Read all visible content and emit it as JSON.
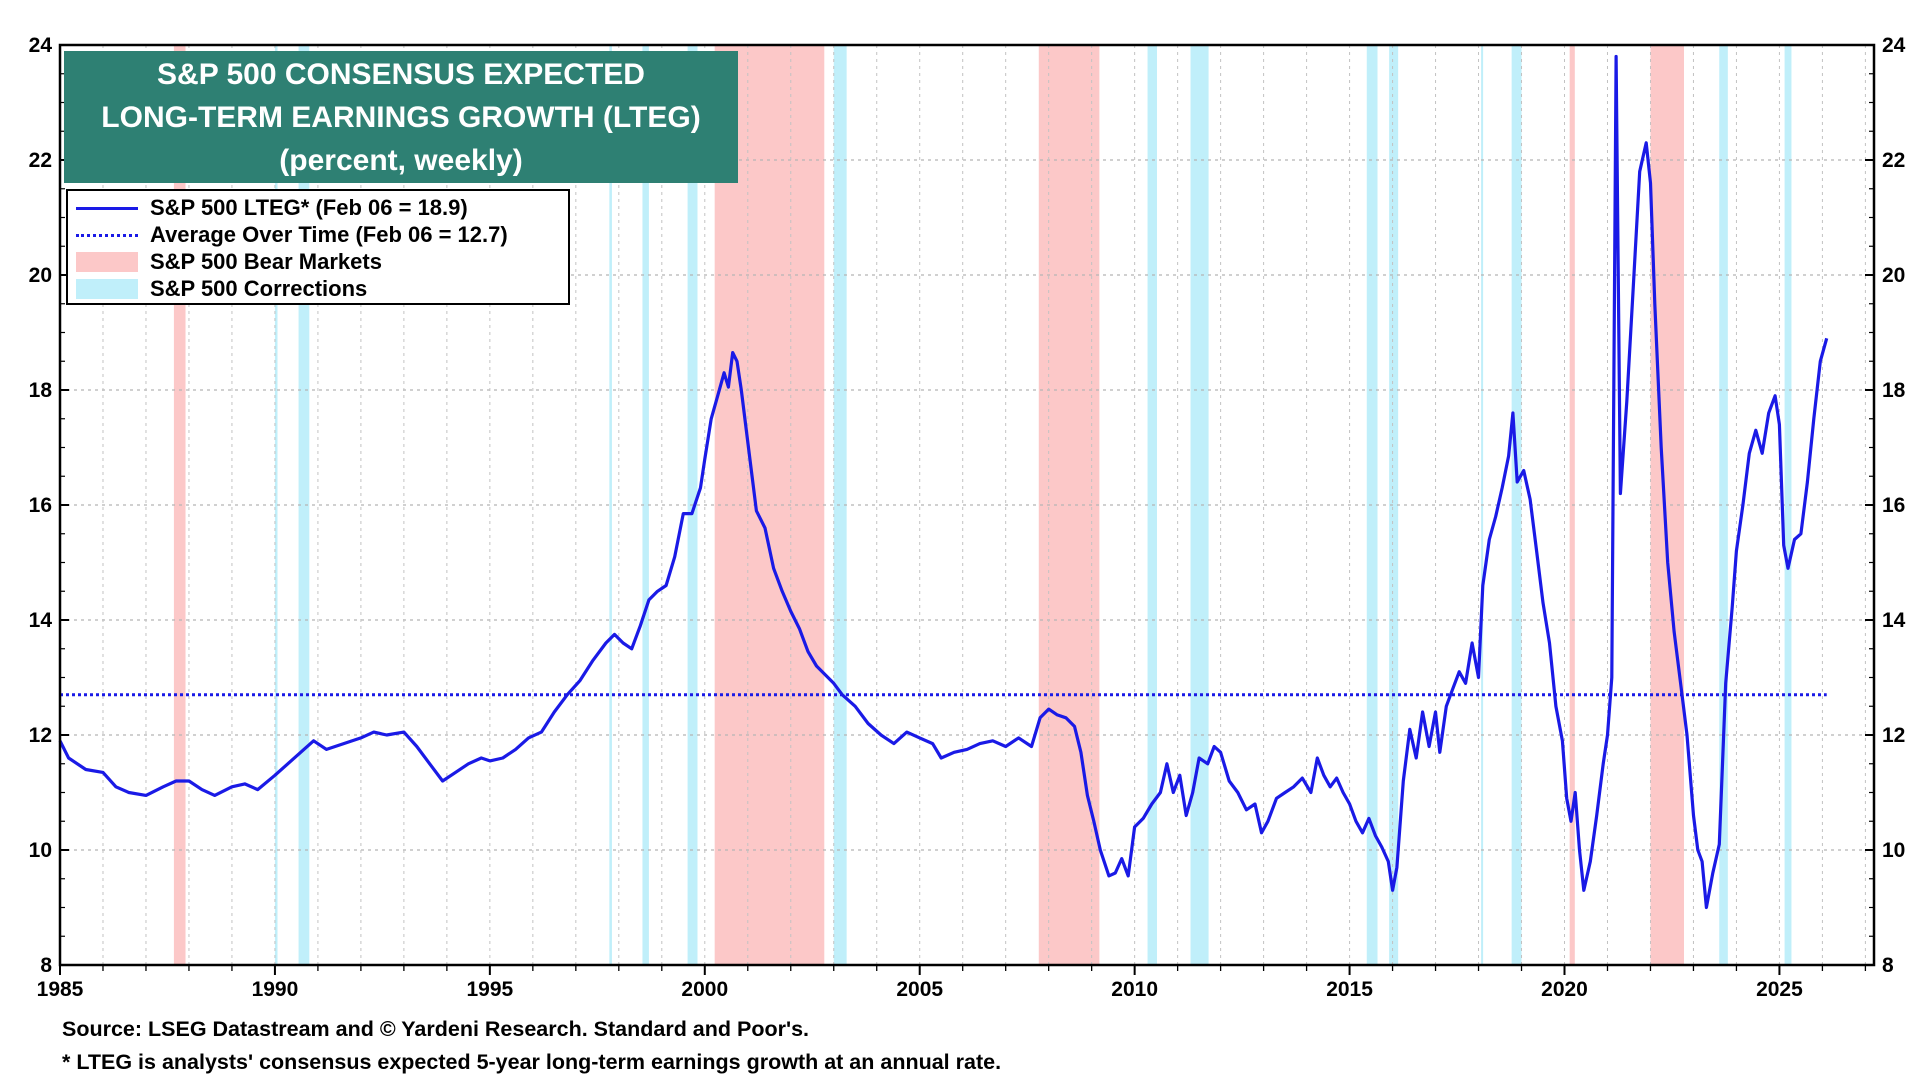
{
  "chart_data": {
    "type": "line",
    "title": "S&P 500 CONSENSUS EXPECTED",
    "title_line2": "LONG-TERM EARNINGS GROWTH (LTEG)",
    "subtitle": "(percent, weekly)",
    "xlim": [
      1985,
      2027.2
    ],
    "ylim": [
      8,
      24
    ],
    "yticks": [
      8,
      10,
      12,
      14,
      16,
      18,
      20,
      22,
      24
    ],
    "xticks": [
      1985,
      1990,
      1995,
      2000,
      2005,
      2010,
      2015,
      2020,
      2025
    ],
    "legend": {
      "series": "S&P 500 LTEG* (Feb 06 = 18.9)",
      "average": "Average Over Time (Feb 06 = 12.7)",
      "bear": "S&P 500 Bear Markets",
      "corrections": "S&P 500 Corrections"
    },
    "average_value": 12.7,
    "series": [
      {
        "name": "S&P 500 LTEG*",
        "points": [
          [
            1985.0,
            11.9
          ],
          [
            1985.2,
            11.6
          ],
          [
            1985.6,
            11.4
          ],
          [
            1986.0,
            11.35
          ],
          [
            1986.3,
            11.1
          ],
          [
            1986.6,
            11.0
          ],
          [
            1987.0,
            10.95
          ],
          [
            1987.4,
            11.1
          ],
          [
            1987.7,
            11.2
          ],
          [
            1988.0,
            11.2
          ],
          [
            1988.3,
            11.05
          ],
          [
            1988.6,
            10.95
          ],
          [
            1989.0,
            11.1
          ],
          [
            1989.3,
            11.15
          ],
          [
            1989.6,
            11.05
          ],
          [
            1990.0,
            11.3
          ],
          [
            1990.3,
            11.5
          ],
          [
            1990.6,
            11.7
          ],
          [
            1990.9,
            11.9
          ],
          [
            1991.2,
            11.75
          ],
          [
            1991.6,
            11.85
          ],
          [
            1992.0,
            11.95
          ],
          [
            1992.3,
            12.05
          ],
          [
            1992.6,
            12.0
          ],
          [
            1993.0,
            12.05
          ],
          [
            1993.3,
            11.8
          ],
          [
            1993.6,
            11.5
          ],
          [
            1993.9,
            11.2
          ],
          [
            1994.2,
            11.35
          ],
          [
            1994.5,
            11.5
          ],
          [
            1994.8,
            11.6
          ],
          [
            1995.0,
            11.55
          ],
          [
            1995.3,
            11.6
          ],
          [
            1995.6,
            11.75
          ],
          [
            1995.9,
            11.95
          ],
          [
            1996.2,
            12.05
          ],
          [
            1996.5,
            12.4
          ],
          [
            1996.8,
            12.7
          ],
          [
            1997.1,
            12.95
          ],
          [
            1997.4,
            13.3
          ],
          [
            1997.7,
            13.6
          ],
          [
            1997.9,
            13.75
          ],
          [
            1998.1,
            13.6
          ],
          [
            1998.3,
            13.5
          ],
          [
            1998.5,
            13.9
          ],
          [
            1998.7,
            14.35
          ],
          [
            1998.9,
            14.5
          ],
          [
            1999.1,
            14.6
          ],
          [
            1999.3,
            15.1
          ],
          [
            1999.5,
            15.85
          ],
          [
            1999.7,
            15.85
          ],
          [
            1999.9,
            16.3
          ],
          [
            2000.0,
            16.8
          ],
          [
            2000.15,
            17.5
          ],
          [
            2000.3,
            17.9
          ],
          [
            2000.45,
            18.3
          ],
          [
            2000.55,
            18.05
          ],
          [
            2000.65,
            18.65
          ],
          [
            2000.75,
            18.5
          ],
          [
            2000.85,
            18.0
          ],
          [
            2000.95,
            17.4
          ],
          [
            2001.05,
            16.8
          ],
          [
            2001.2,
            15.9
          ],
          [
            2001.4,
            15.6
          ],
          [
            2001.6,
            14.9
          ],
          [
            2001.8,
            14.5
          ],
          [
            2002.0,
            14.15
          ],
          [
            2002.2,
            13.85
          ],
          [
            2002.4,
            13.45
          ],
          [
            2002.6,
            13.2
          ],
          [
            2002.8,
            13.05
          ],
          [
            2003.0,
            12.9
          ],
          [
            2003.2,
            12.7
          ],
          [
            2003.5,
            12.5
          ],
          [
            2003.8,
            12.2
          ],
          [
            2004.1,
            12.0
          ],
          [
            2004.4,
            11.85
          ],
          [
            2004.7,
            12.05
          ],
          [
            2005.0,
            11.95
          ],
          [
            2005.3,
            11.85
          ],
          [
            2005.5,
            11.6
          ],
          [
            2005.8,
            11.7
          ],
          [
            2006.1,
            11.75
          ],
          [
            2006.4,
            11.85
          ],
          [
            2006.7,
            11.9
          ],
          [
            2007.0,
            11.8
          ],
          [
            2007.3,
            11.95
          ],
          [
            2007.6,
            11.8
          ],
          [
            2007.8,
            12.3
          ],
          [
            2008.0,
            12.45
          ],
          [
            2008.2,
            12.35
          ],
          [
            2008.4,
            12.3
          ],
          [
            2008.6,
            12.15
          ],
          [
            2008.75,
            11.7
          ],
          [
            2008.9,
            10.95
          ],
          [
            2009.05,
            10.5
          ],
          [
            2009.2,
            10.0
          ],
          [
            2009.4,
            9.55
          ],
          [
            2009.55,
            9.6
          ],
          [
            2009.7,
            9.85
          ],
          [
            2009.85,
            9.55
          ],
          [
            2010.0,
            10.4
          ],
          [
            2010.2,
            10.55
          ],
          [
            2010.4,
            10.8
          ],
          [
            2010.6,
            11.0
          ],
          [
            2010.75,
            11.5
          ],
          [
            2010.9,
            11.0
          ],
          [
            2011.05,
            11.3
          ],
          [
            2011.2,
            10.6
          ],
          [
            2011.35,
            11.0
          ],
          [
            2011.5,
            11.6
          ],
          [
            2011.7,
            11.5
          ],
          [
            2011.85,
            11.8
          ],
          [
            2012.0,
            11.7
          ],
          [
            2012.2,
            11.2
          ],
          [
            2012.4,
            11.0
          ],
          [
            2012.6,
            10.7
          ],
          [
            2012.8,
            10.8
          ],
          [
            2012.95,
            10.3
          ],
          [
            2013.1,
            10.5
          ],
          [
            2013.3,
            10.9
          ],
          [
            2013.5,
            11.0
          ],
          [
            2013.7,
            11.1
          ],
          [
            2013.9,
            11.25
          ],
          [
            2014.1,
            11.0
          ],
          [
            2014.25,
            11.6
          ],
          [
            2014.4,
            11.3
          ],
          [
            2014.55,
            11.1
          ],
          [
            2014.7,
            11.25
          ],
          [
            2014.85,
            11.0
          ],
          [
            2015.0,
            10.8
          ],
          [
            2015.15,
            10.5
          ],
          [
            2015.3,
            10.3
          ],
          [
            2015.45,
            10.55
          ],
          [
            2015.6,
            10.25
          ],
          [
            2015.75,
            10.05
          ],
          [
            2015.9,
            9.8
          ],
          [
            2016.0,
            9.3
          ],
          [
            2016.1,
            9.7
          ],
          [
            2016.25,
            11.2
          ],
          [
            2016.4,
            12.1
          ],
          [
            2016.55,
            11.6
          ],
          [
            2016.7,
            12.4
          ],
          [
            2016.85,
            11.8
          ],
          [
            2017.0,
            12.4
          ],
          [
            2017.1,
            11.7
          ],
          [
            2017.25,
            12.5
          ],
          [
            2017.4,
            12.8
          ],
          [
            2017.55,
            13.1
          ],
          [
            2017.7,
            12.9
          ],
          [
            2017.85,
            13.6
          ],
          [
            2018.0,
            13.0
          ],
          [
            2018.1,
            14.6
          ],
          [
            2018.25,
            15.4
          ],
          [
            2018.4,
            15.8
          ],
          [
            2018.55,
            16.3
          ],
          [
            2018.7,
            16.85
          ],
          [
            2018.8,
            17.6
          ],
          [
            2018.9,
            16.4
          ],
          [
            2019.05,
            16.6
          ],
          [
            2019.2,
            16.1
          ],
          [
            2019.35,
            15.2
          ],
          [
            2019.5,
            14.3
          ],
          [
            2019.65,
            13.6
          ],
          [
            2019.8,
            12.5
          ],
          [
            2019.95,
            11.9
          ],
          [
            2020.05,
            10.9
          ],
          [
            2020.15,
            10.5
          ],
          [
            2020.25,
            11.0
          ],
          [
            2020.35,
            10.0
          ],
          [
            2020.45,
            9.3
          ],
          [
            2020.6,
            9.8
          ],
          [
            2020.75,
            10.6
          ],
          [
            2020.9,
            11.5
          ],
          [
            2021.0,
            12.0
          ],
          [
            2021.1,
            13.0
          ],
          [
            2021.2,
            23.8
          ],
          [
            2021.3,
            16.2
          ],
          [
            2021.45,
            17.8
          ],
          [
            2021.6,
            19.8
          ],
          [
            2021.75,
            21.8
          ],
          [
            2021.9,
            22.3
          ],
          [
            2022.0,
            21.6
          ],
          [
            2022.1,
            19.5
          ],
          [
            2022.25,
            17.0
          ],
          [
            2022.4,
            15.0
          ],
          [
            2022.55,
            13.8
          ],
          [
            2022.7,
            12.9
          ],
          [
            2022.85,
            12.0
          ],
          [
            2023.0,
            10.6
          ],
          [
            2023.1,
            10.0
          ],
          [
            2023.2,
            9.8
          ],
          [
            2023.3,
            9.0
          ],
          [
            2023.45,
            9.6
          ],
          [
            2023.6,
            10.1
          ],
          [
            2023.75,
            12.9
          ],
          [
            2023.9,
            14.2
          ],
          [
            2024.0,
            15.2
          ],
          [
            2024.15,
            16.0
          ],
          [
            2024.3,
            16.9
          ],
          [
            2024.45,
            17.3
          ],
          [
            2024.6,
            16.9
          ],
          [
            2024.75,
            17.6
          ],
          [
            2024.9,
            17.9
          ],
          [
            2025.0,
            17.4
          ],
          [
            2025.1,
            15.3
          ],
          [
            2025.2,
            14.9
          ],
          [
            2025.35,
            15.4
          ],
          [
            2025.5,
            15.5
          ],
          [
            2025.65,
            16.4
          ],
          [
            2025.8,
            17.5
          ],
          [
            2025.95,
            18.5
          ],
          [
            2026.1,
            18.9
          ]
        ]
      }
    ],
    "bear_markets": [
      [
        1987.65,
        1987.92
      ],
      [
        2000.23,
        2002.78
      ],
      [
        2007.77,
        2009.18
      ],
      [
        2020.12,
        2020.24
      ],
      [
        2022.0,
        2022.78
      ]
    ],
    "corrections": [
      [
        1990.0,
        1990.06
      ],
      [
        1990.55,
        1990.8
      ],
      [
        1997.78,
        1997.84
      ],
      [
        1998.55,
        1998.7
      ],
      [
        1999.6,
        1999.83
      ],
      [
        2003.0,
        2003.3
      ],
      [
        2010.3,
        2010.52
      ],
      [
        2011.3,
        2011.72
      ],
      [
        2015.4,
        2015.65
      ],
      [
        2015.92,
        2016.13
      ],
      [
        2018.06,
        2018.1
      ],
      [
        2018.77,
        2019.0
      ],
      [
        2023.6,
        2023.8
      ],
      [
        2025.12,
        2025.28
      ]
    ]
  },
  "footnotes": {
    "source": "Source: LSEG Datastream and © Yardeni Research. Standard and Poor's.",
    "note": "* LTEG is analysts' consensus expected 5-year long-term earnings growth at an annual rate."
  },
  "colors": {
    "series": "#1a1ae6",
    "bear": "#fcc8c8",
    "corrections": "#c0effa",
    "title_bg": "#2e8073"
  }
}
